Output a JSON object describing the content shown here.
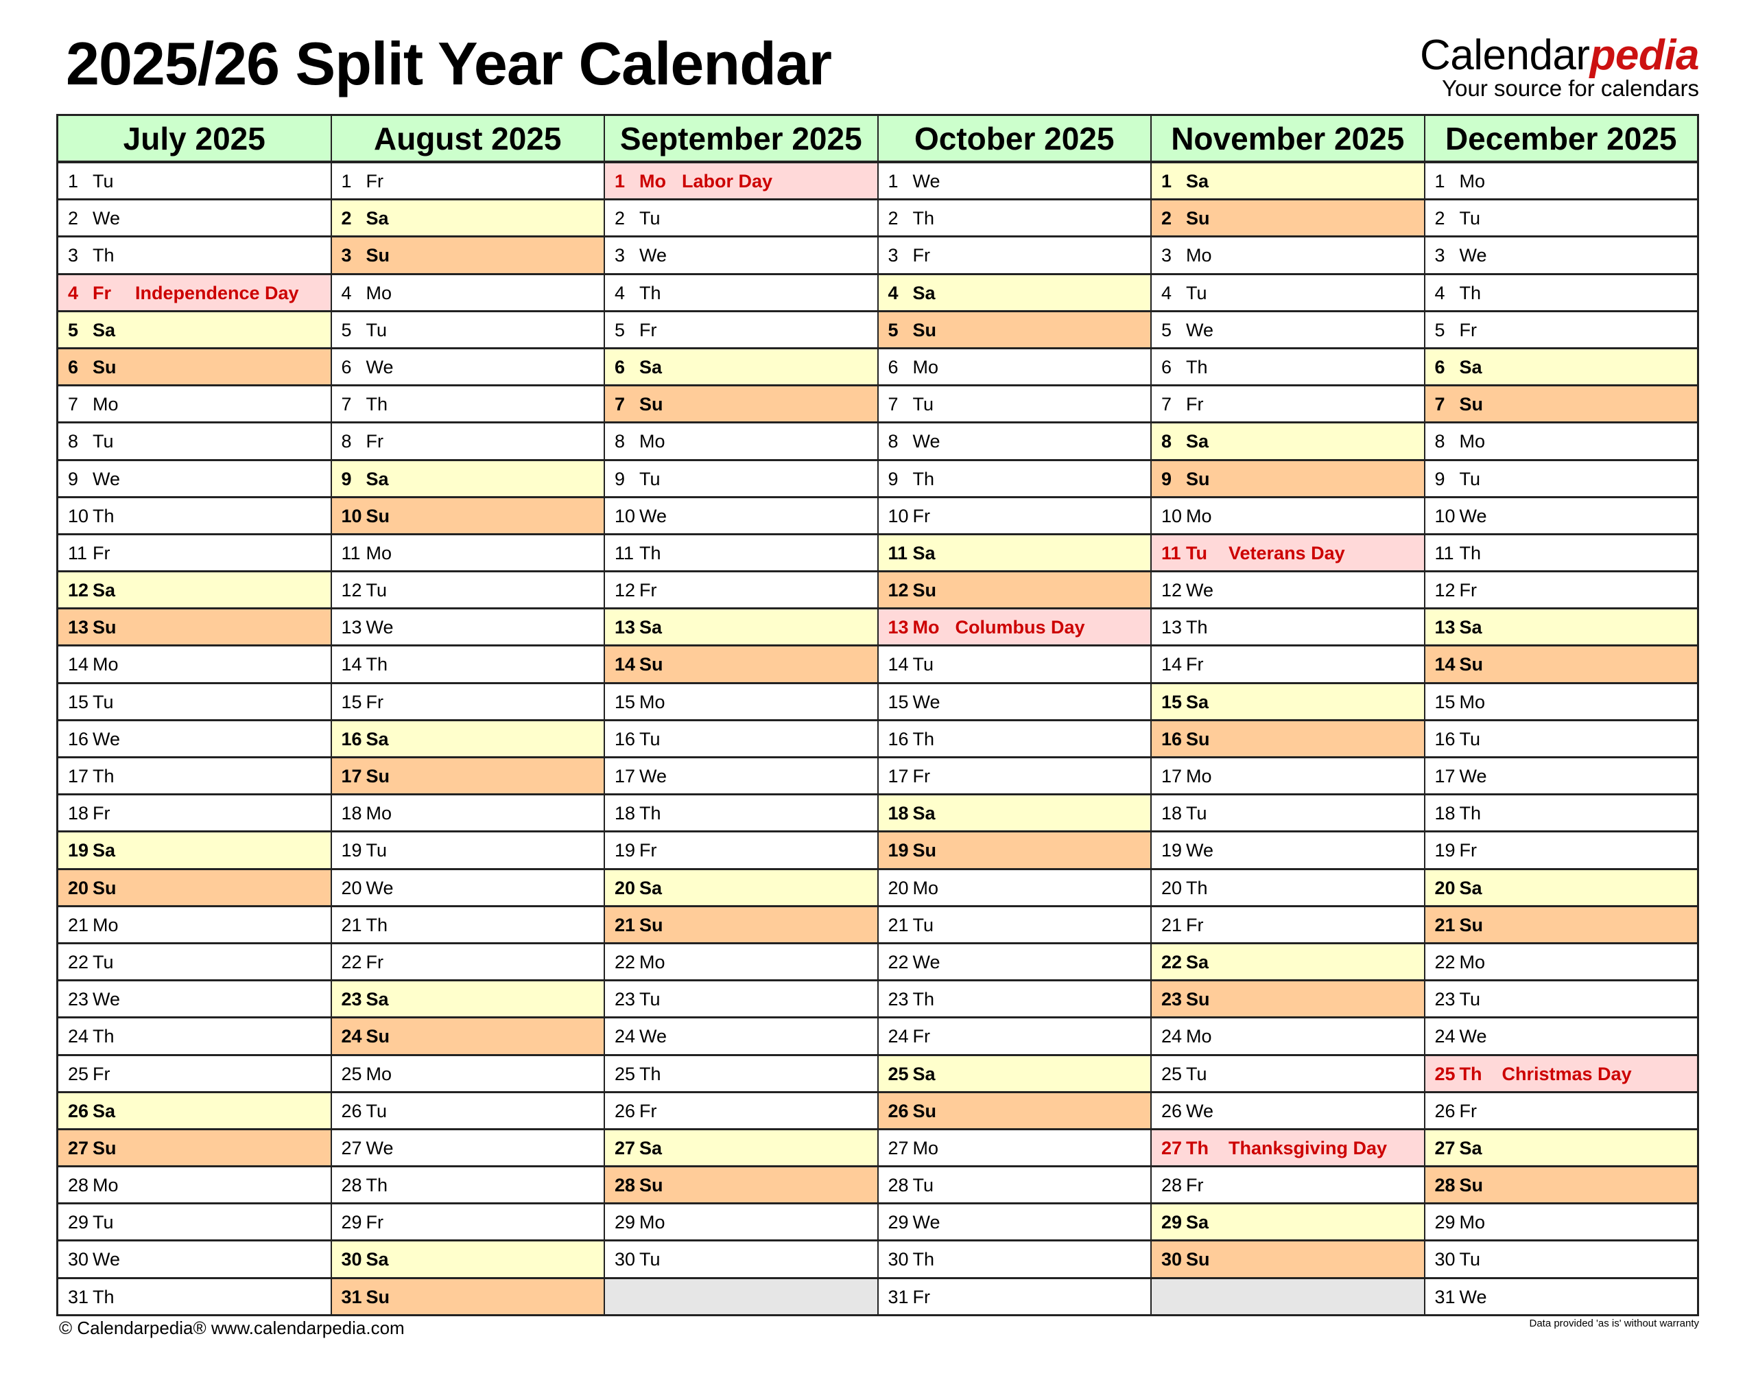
{
  "title": "2025/26 Split Year Calendar",
  "logo": {
    "main": "Calendar",
    "accent": "pedia",
    "tagline": "Your source for calendars"
  },
  "colors": {
    "header": "#ccffcc",
    "saturday": "#ffffcc",
    "sunday": "#ffcc99",
    "holiday_bg": "#ffd9d9",
    "holiday_text": "#cc0000",
    "empty": "#e6e6e6"
  },
  "months": [
    {
      "name": "July 2025",
      "days": [
        [
          "1",
          "Tu"
        ],
        [
          "2",
          "We"
        ],
        [
          "3",
          "Th"
        ],
        [
          "4",
          "Fr",
          "Independence Day"
        ],
        [
          "5",
          "Sa"
        ],
        [
          "6",
          "Su"
        ],
        [
          "7",
          "Mo"
        ],
        [
          "8",
          "Tu"
        ],
        [
          "9",
          "We"
        ],
        [
          "10",
          "Th"
        ],
        [
          "11",
          "Fr"
        ],
        [
          "12",
          "Sa"
        ],
        [
          "13",
          "Su"
        ],
        [
          "14",
          "Mo"
        ],
        [
          "15",
          "Tu"
        ],
        [
          "16",
          "We"
        ],
        [
          "17",
          "Th"
        ],
        [
          "18",
          "Fr"
        ],
        [
          "19",
          "Sa"
        ],
        [
          "20",
          "Su"
        ],
        [
          "21",
          "Mo"
        ],
        [
          "22",
          "Tu"
        ],
        [
          "23",
          "We"
        ],
        [
          "24",
          "Th"
        ],
        [
          "25",
          "Fr"
        ],
        [
          "26",
          "Sa"
        ],
        [
          "27",
          "Su"
        ],
        [
          "28",
          "Mo"
        ],
        [
          "29",
          "Tu"
        ],
        [
          "30",
          "We"
        ],
        [
          "31",
          "Th"
        ]
      ]
    },
    {
      "name": "August 2025",
      "days": [
        [
          "1",
          "Fr"
        ],
        [
          "2",
          "Sa"
        ],
        [
          "3",
          "Su"
        ],
        [
          "4",
          "Mo"
        ],
        [
          "5",
          "Tu"
        ],
        [
          "6",
          "We"
        ],
        [
          "7",
          "Th"
        ],
        [
          "8",
          "Fr"
        ],
        [
          "9",
          "Sa"
        ],
        [
          "10",
          "Su"
        ],
        [
          "11",
          "Mo"
        ],
        [
          "12",
          "Tu"
        ],
        [
          "13",
          "We"
        ],
        [
          "14",
          "Th"
        ],
        [
          "15",
          "Fr"
        ],
        [
          "16",
          "Sa"
        ],
        [
          "17",
          "Su"
        ],
        [
          "18",
          "Mo"
        ],
        [
          "19",
          "Tu"
        ],
        [
          "20",
          "We"
        ],
        [
          "21",
          "Th"
        ],
        [
          "22",
          "Fr"
        ],
        [
          "23",
          "Sa"
        ],
        [
          "24",
          "Su"
        ],
        [
          "25",
          "Mo"
        ],
        [
          "26",
          "Tu"
        ],
        [
          "27",
          "We"
        ],
        [
          "28",
          "Th"
        ],
        [
          "29",
          "Fr"
        ],
        [
          "30",
          "Sa"
        ],
        [
          "31",
          "Su"
        ]
      ]
    },
    {
      "name": "September 2025",
      "days": [
        [
          "1",
          "Mo",
          "Labor Day"
        ],
        [
          "2",
          "Tu"
        ],
        [
          "3",
          "We"
        ],
        [
          "4",
          "Th"
        ],
        [
          "5",
          "Fr"
        ],
        [
          "6",
          "Sa"
        ],
        [
          "7",
          "Su"
        ],
        [
          "8",
          "Mo"
        ],
        [
          "9",
          "Tu"
        ],
        [
          "10",
          "We"
        ],
        [
          "11",
          "Th"
        ],
        [
          "12",
          "Fr"
        ],
        [
          "13",
          "Sa"
        ],
        [
          "14",
          "Su"
        ],
        [
          "15",
          "Mo"
        ],
        [
          "16",
          "Tu"
        ],
        [
          "17",
          "We"
        ],
        [
          "18",
          "Th"
        ],
        [
          "19",
          "Fr"
        ],
        [
          "20",
          "Sa"
        ],
        [
          "21",
          "Su"
        ],
        [
          "22",
          "Mo"
        ],
        [
          "23",
          "Tu"
        ],
        [
          "24",
          "We"
        ],
        [
          "25",
          "Th"
        ],
        [
          "26",
          "Fr"
        ],
        [
          "27",
          "Sa"
        ],
        [
          "28",
          "Su"
        ],
        [
          "29",
          "Mo"
        ],
        [
          "30",
          "Tu"
        ]
      ]
    },
    {
      "name": "October 2025",
      "days": [
        [
          "1",
          "We"
        ],
        [
          "2",
          "Th"
        ],
        [
          "3",
          "Fr"
        ],
        [
          "4",
          "Sa"
        ],
        [
          "5",
          "Su"
        ],
        [
          "6",
          "Mo"
        ],
        [
          "7",
          "Tu"
        ],
        [
          "8",
          "We"
        ],
        [
          "9",
          "Th"
        ],
        [
          "10",
          "Fr"
        ],
        [
          "11",
          "Sa"
        ],
        [
          "12",
          "Su"
        ],
        [
          "13",
          "Mo",
          "Columbus Day"
        ],
        [
          "14",
          "Tu"
        ],
        [
          "15",
          "We"
        ],
        [
          "16",
          "Th"
        ],
        [
          "17",
          "Fr"
        ],
        [
          "18",
          "Sa"
        ],
        [
          "19",
          "Su"
        ],
        [
          "20",
          "Mo"
        ],
        [
          "21",
          "Tu"
        ],
        [
          "22",
          "We"
        ],
        [
          "23",
          "Th"
        ],
        [
          "24",
          "Fr"
        ],
        [
          "25",
          "Sa"
        ],
        [
          "26",
          "Su"
        ],
        [
          "27",
          "Mo"
        ],
        [
          "28",
          "Tu"
        ],
        [
          "29",
          "We"
        ],
        [
          "30",
          "Th"
        ],
        [
          "31",
          "Fr"
        ]
      ]
    },
    {
      "name": "November 2025",
      "days": [
        [
          "1",
          "Sa"
        ],
        [
          "2",
          "Su"
        ],
        [
          "3",
          "Mo"
        ],
        [
          "4",
          "Tu"
        ],
        [
          "5",
          "We"
        ],
        [
          "6",
          "Th"
        ],
        [
          "7",
          "Fr"
        ],
        [
          "8",
          "Sa"
        ],
        [
          "9",
          "Su"
        ],
        [
          "10",
          "Mo"
        ],
        [
          "11",
          "Tu",
          "Veterans Day"
        ],
        [
          "12",
          "We"
        ],
        [
          "13",
          "Th"
        ],
        [
          "14",
          "Fr"
        ],
        [
          "15",
          "Sa"
        ],
        [
          "16",
          "Su"
        ],
        [
          "17",
          "Mo"
        ],
        [
          "18",
          "Tu"
        ],
        [
          "19",
          "We"
        ],
        [
          "20",
          "Th"
        ],
        [
          "21",
          "Fr"
        ],
        [
          "22",
          "Sa"
        ],
        [
          "23",
          "Su"
        ],
        [
          "24",
          "Mo"
        ],
        [
          "25",
          "Tu"
        ],
        [
          "26",
          "We"
        ],
        [
          "27",
          "Th",
          "Thanksgiving Day"
        ],
        [
          "28",
          "Fr"
        ],
        [
          "29",
          "Sa"
        ],
        [
          "30",
          "Su"
        ]
      ]
    },
    {
      "name": "December 2025",
      "days": [
        [
          "1",
          "Mo"
        ],
        [
          "2",
          "Tu"
        ],
        [
          "3",
          "We"
        ],
        [
          "4",
          "Th"
        ],
        [
          "5",
          "Fr"
        ],
        [
          "6",
          "Sa"
        ],
        [
          "7",
          "Su"
        ],
        [
          "8",
          "Mo"
        ],
        [
          "9",
          "Tu"
        ],
        [
          "10",
          "We"
        ],
        [
          "11",
          "Th"
        ],
        [
          "12",
          "Fr"
        ],
        [
          "13",
          "Sa"
        ],
        [
          "14",
          "Su"
        ],
        [
          "15",
          "Mo"
        ],
        [
          "16",
          "Tu"
        ],
        [
          "17",
          "We"
        ],
        [
          "18",
          "Th"
        ],
        [
          "19",
          "Fr"
        ],
        [
          "20",
          "Sa"
        ],
        [
          "21",
          "Su"
        ],
        [
          "22",
          "Mo"
        ],
        [
          "23",
          "Tu"
        ],
        [
          "24",
          "We"
        ],
        [
          "25",
          "Th",
          "Christmas Day"
        ],
        [
          "26",
          "Fr"
        ],
        [
          "27",
          "Sa"
        ],
        [
          "28",
          "Su"
        ],
        [
          "29",
          "Mo"
        ],
        [
          "30",
          "Tu"
        ],
        [
          "31",
          "We"
        ]
      ]
    }
  ],
  "footer": {
    "left": "© Calendarpedia®   www.calendarpedia.com",
    "right": "Data provided 'as is' without warranty"
  }
}
